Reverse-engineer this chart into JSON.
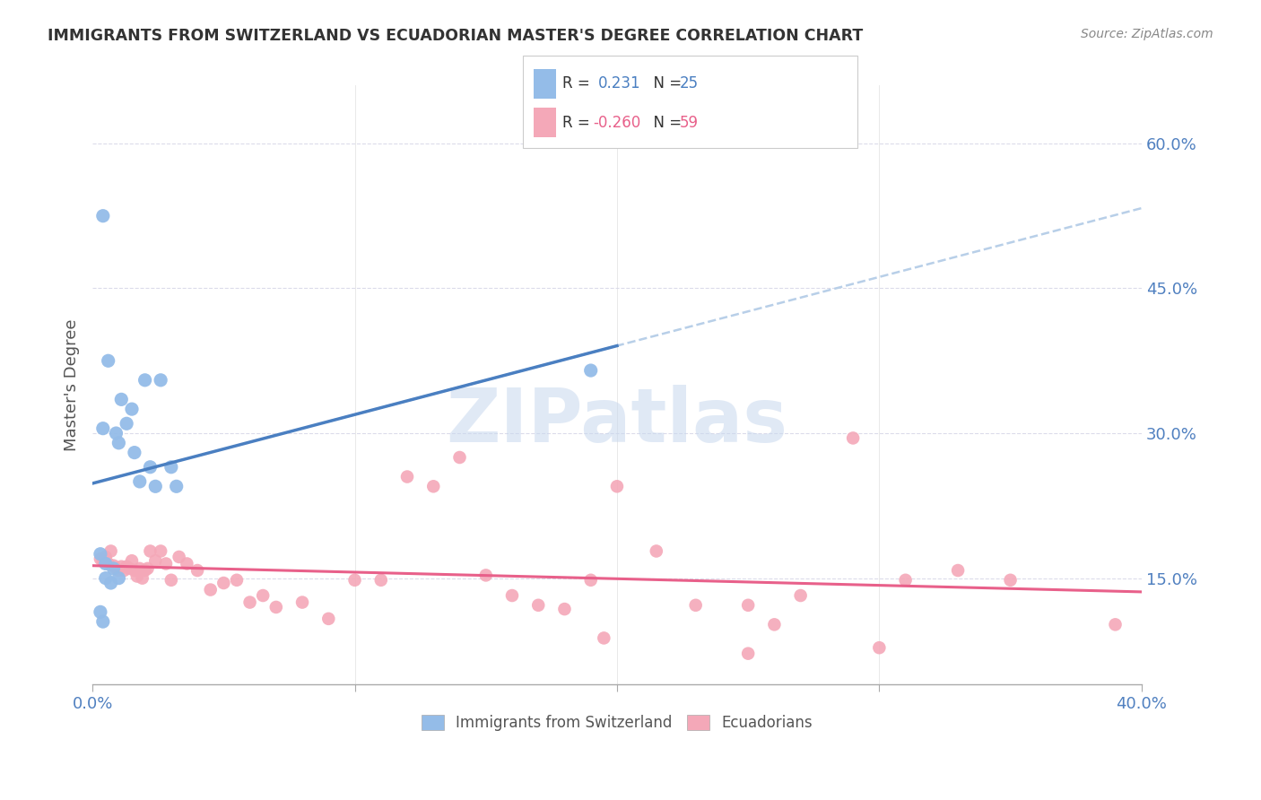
{
  "title": "IMMIGRANTS FROM SWITZERLAND VS ECUADORIAN MASTER'S DEGREE CORRELATION CHART",
  "source": "Source: ZipAtlas.com",
  "ylabel": "Master's Degree",
  "ytick_labels": [
    "15.0%",
    "30.0%",
    "45.0%",
    "60.0%"
  ],
  "ytick_vals": [
    0.15,
    0.3,
    0.45,
    0.6
  ],
  "xtick_left_label": "0.0%",
  "xtick_right_label": "40.0%",
  "xrange": [
    0.0,
    0.4
  ],
  "yrange": [
    0.04,
    0.66
  ],
  "r_blue": 0.231,
  "n_blue": 25,
  "r_pink": -0.26,
  "n_pink": 59,
  "blue_scatter_color": "#94bce8",
  "pink_scatter_color": "#f4a8b8",
  "blue_line_color": "#4a7fc1",
  "pink_line_color": "#e8608a",
  "dashed_line_color": "#b8cfe8",
  "ytick_color": "#5080c0",
  "xtick_color": "#5080c0",
  "legend_label_blue": "Immigrants from Switzerland",
  "legend_label_pink": "Ecuadorians",
  "watermark": "ZIPatlas",
  "watermark_color": "#c8d8ee",
  "background_color": "#ffffff",
  "grid_color": "#d8d8e8",
  "blue_scatter_x": [
    0.004,
    0.006,
    0.009,
    0.01,
    0.011,
    0.013,
    0.015,
    0.016,
    0.018,
    0.02,
    0.022,
    0.024,
    0.026,
    0.03,
    0.032,
    0.004,
    0.005,
    0.007,
    0.008,
    0.01,
    0.19,
    0.003,
    0.003,
    0.004,
    0.005
  ],
  "blue_scatter_y": [
    0.305,
    0.375,
    0.3,
    0.29,
    0.335,
    0.31,
    0.325,
    0.28,
    0.25,
    0.355,
    0.265,
    0.245,
    0.355,
    0.265,
    0.245,
    0.525,
    0.165,
    0.145,
    0.16,
    0.15,
    0.365,
    0.175,
    0.115,
    0.105,
    0.15
  ],
  "pink_scatter_x": [
    0.003,
    0.004,
    0.005,
    0.006,
    0.007,
    0.008,
    0.009,
    0.01,
    0.011,
    0.012,
    0.013,
    0.014,
    0.015,
    0.016,
    0.017,
    0.018,
    0.019,
    0.02,
    0.021,
    0.022,
    0.024,
    0.026,
    0.028,
    0.03,
    0.033,
    0.036,
    0.04,
    0.045,
    0.05,
    0.055,
    0.06,
    0.065,
    0.07,
    0.08,
    0.09,
    0.1,
    0.11,
    0.12,
    0.13,
    0.14,
    0.15,
    0.16,
    0.17,
    0.18,
    0.19,
    0.2,
    0.215,
    0.23,
    0.25,
    0.27,
    0.29,
    0.31,
    0.33,
    0.35,
    0.195,
    0.25,
    0.26,
    0.3,
    0.39
  ],
  "pink_scatter_y": [
    0.17,
    0.168,
    0.172,
    0.165,
    0.178,
    0.163,
    0.16,
    0.158,
    0.162,
    0.158,
    0.162,
    0.16,
    0.168,
    0.158,
    0.152,
    0.16,
    0.15,
    0.158,
    0.16,
    0.178,
    0.168,
    0.178,
    0.165,
    0.148,
    0.172,
    0.165,
    0.158,
    0.138,
    0.145,
    0.148,
    0.125,
    0.132,
    0.12,
    0.125,
    0.108,
    0.148,
    0.148,
    0.255,
    0.245,
    0.275,
    0.153,
    0.132,
    0.122,
    0.118,
    0.148,
    0.245,
    0.178,
    0.122,
    0.122,
    0.132,
    0.295,
    0.148,
    0.158,
    0.148,
    0.088,
    0.072,
    0.102,
    0.078,
    0.102
  ],
  "blue_line_xrange": [
    0.0,
    0.2
  ],
  "dashed_line_xrange": [
    0.09,
    0.4
  ],
  "pink_line_xrange": [
    0.0,
    0.4
  ]
}
